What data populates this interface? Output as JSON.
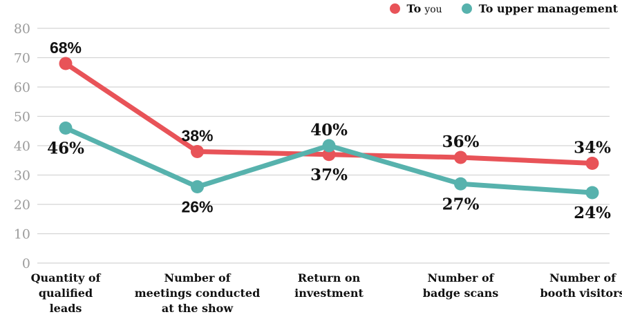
{
  "colors": {
    "to_you": "#e85358",
    "to_upper_management": "#57b2ad",
    "grid": "#d4d4d4",
    "tick_text": "#9b9b9b",
    "label_text": "#111111",
    "background": "#ffffff"
  },
  "legend": {
    "items": [
      {
        "series_index": 0,
        "parts": [
          {
            "text": "To",
            "variant": "slab"
          },
          {
            "text": "you",
            "variant": "light"
          }
        ]
      },
      {
        "series_index": 1,
        "parts": [
          {
            "text": "To upper management",
            "variant": "slab"
          }
        ]
      }
    ]
  },
  "chart_data": {
    "type": "line",
    "title": "",
    "categories": [
      [
        "Quantity of",
        "qualified",
        "leads"
      ],
      [
        "Number of",
        "meetings conducted",
        "at the show"
      ],
      [
        "Return on",
        "investment"
      ],
      [
        "Number of",
        "badge scans"
      ],
      [
        "Number of",
        "booth visitors"
      ]
    ],
    "series": [
      {
        "name": "To you",
        "color": "#e85358",
        "values": [
          68,
          38,
          37,
          36,
          34
        ],
        "labels": [
          "68%",
          "38%",
          "37%",
          "36%",
          "34%"
        ],
        "label_variants": [
          "sans",
          "sans",
          "slab",
          "slab",
          "slab"
        ]
      },
      {
        "name": "To upper management",
        "color": "#57b2ad",
        "values": [
          46,
          26,
          40,
          27,
          24
        ],
        "labels": [
          "46%",
          "26%",
          "40%",
          "27%",
          "24%"
        ],
        "label_variants": [
          "slab",
          "sans",
          "slab",
          "slab",
          "slab"
        ]
      }
    ],
    "ylim": [
      0,
      80
    ],
    "yticks": [
      0,
      10,
      20,
      30,
      40,
      50,
      60,
      70,
      80
    ],
    "grid": true,
    "legend_position": "top-right",
    "marker": "circle",
    "unit": "%"
  }
}
